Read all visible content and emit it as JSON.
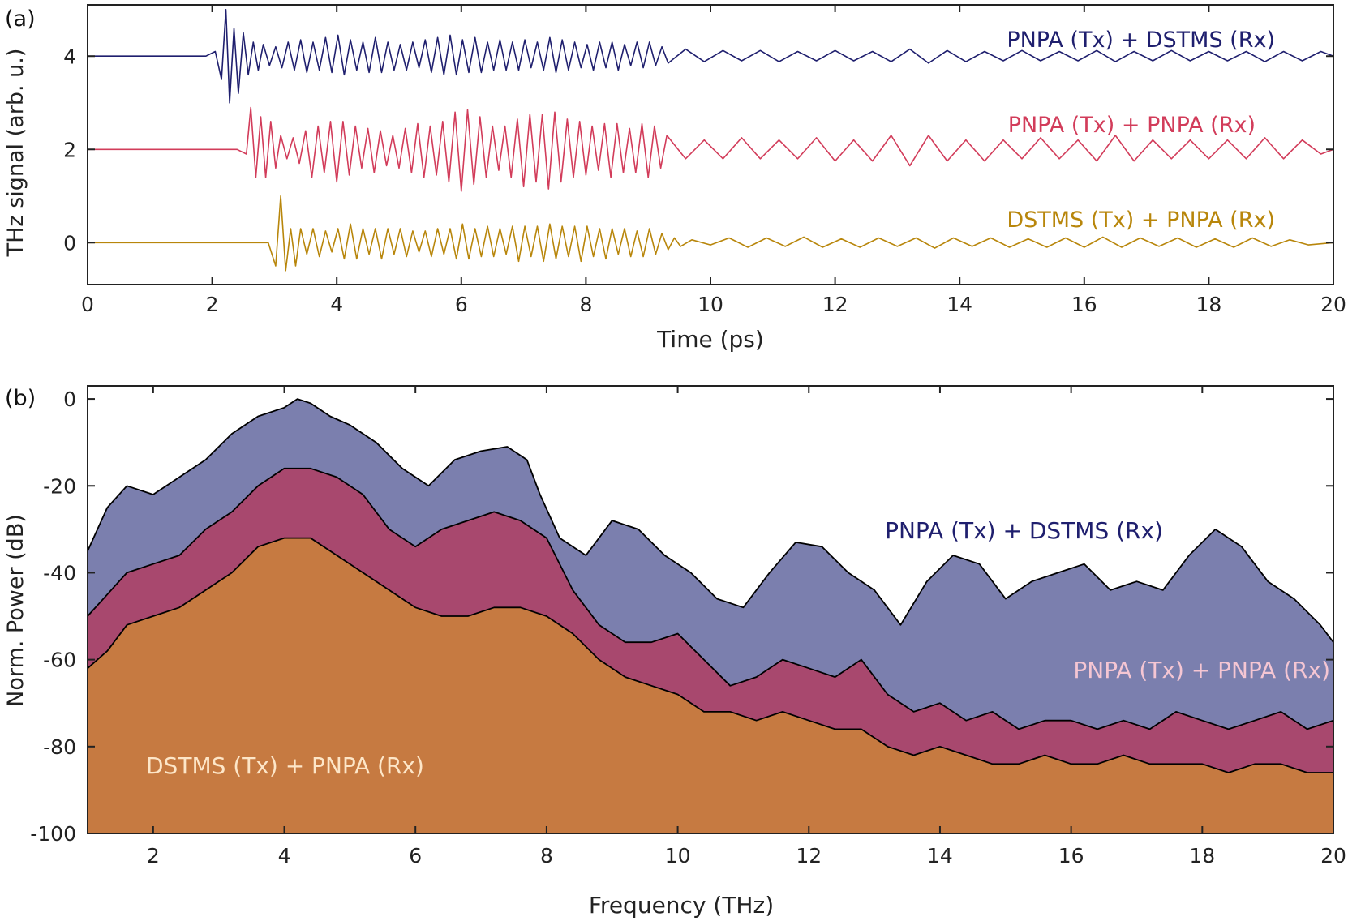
{
  "chart_data": [
    {
      "panel": "(a)",
      "type": "line",
      "xlabel": "Time (ps)",
      "ylabel": "THz signal (arb. u.)",
      "xlim": [
        0,
        20
      ],
      "ylim": [
        -0.9,
        5.1
      ],
      "xticks": [
        0,
        2,
        4,
        6,
        8,
        10,
        12,
        14,
        16,
        18,
        20
      ],
      "yticks": [
        0,
        2,
        4
      ],
      "series": [
        {
          "name": "PNPA (Tx) + DSTMS (Rx)",
          "color": "#1f1f6e",
          "offset": 4,
          "t": [
            0.0,
            1.9,
            2.05,
            2.15,
            2.22,
            2.28,
            2.35,
            2.42,
            2.5,
            2.58,
            2.66,
            2.74,
            2.82,
            2.92,
            3.02,
            3.12,
            3.22,
            3.32,
            3.42,
            3.52,
            3.62,
            3.72,
            3.82,
            3.92,
            4.02,
            4.12,
            4.22,
            4.32,
            4.42,
            4.52,
            4.62,
            4.72,
            4.82,
            4.92,
            5.02,
            5.12,
            5.22,
            5.32,
            5.42,
            5.52,
            5.62,
            5.72,
            5.82,
            5.92,
            6.02,
            6.12,
            6.22,
            6.32,
            6.42,
            6.52,
            6.62,
            6.72,
            6.82,
            6.92,
            7.02,
            7.12,
            7.22,
            7.32,
            7.42,
            7.52,
            7.62,
            7.72,
            7.82,
            7.92,
            8.02,
            8.12,
            8.22,
            8.32,
            8.42,
            8.52,
            8.62,
            8.72,
            8.82,
            8.92,
            9.02,
            9.12,
            9.22,
            9.32,
            9.6,
            9.9,
            10.2,
            10.5,
            10.8,
            11.1,
            11.4,
            11.7,
            12.0,
            12.3,
            12.6,
            12.9,
            13.2,
            13.5,
            13.8,
            14.1,
            14.4,
            14.7,
            15.0,
            15.3,
            15.6,
            15.9,
            16.2,
            16.5,
            16.8,
            17.1,
            17.4,
            17.7,
            18.0,
            18.3,
            18.6,
            18.9,
            19.2,
            19.5,
            19.8,
            20.0
          ],
          "v": [
            0.0,
            0.0,
            0.1,
            -0.5,
            1.0,
            -1.0,
            0.6,
            -0.8,
            0.5,
            -0.4,
            0.3,
            -0.3,
            0.25,
            -0.2,
            0.2,
            -0.25,
            0.3,
            -0.3,
            0.35,
            -0.35,
            0.3,
            -0.3,
            0.4,
            -0.35,
            0.45,
            -0.4,
            0.35,
            -0.3,
            0.3,
            -0.35,
            0.4,
            -0.35,
            0.3,
            -0.3,
            0.25,
            -0.3,
            0.3,
            -0.25,
            0.35,
            -0.35,
            0.4,
            -0.4,
            0.45,
            -0.4,
            0.35,
            -0.35,
            0.4,
            -0.35,
            0.3,
            -0.3,
            0.35,
            -0.3,
            0.3,
            -0.3,
            0.35,
            -0.25,
            0.3,
            -0.3,
            0.4,
            -0.35,
            0.35,
            -0.3,
            0.3,
            -0.25,
            0.25,
            -0.3,
            0.3,
            -0.25,
            0.3,
            -0.3,
            0.25,
            -0.2,
            0.3,
            -0.25,
            0.3,
            -0.2,
            0.2,
            -0.15,
            0.15,
            -0.12,
            0.12,
            -0.1,
            0.12,
            -0.12,
            0.1,
            -0.1,
            0.12,
            -0.1,
            0.1,
            -0.12,
            0.15,
            -0.15,
            0.12,
            -0.12,
            0.1,
            -0.1,
            0.12,
            -0.1,
            0.1,
            -0.1,
            0.12,
            -0.12,
            0.1,
            -0.1,
            0.12,
            -0.1,
            0.1,
            -0.1,
            0.1,
            -0.12,
            0.1,
            -0.1,
            0.1,
            0.0
          ]
        },
        {
          "name": "PNPA (Tx) + PNPA (Rx)",
          "color": "#d23c5a",
          "offset": 2,
          "t": [
            0.0,
            2.4,
            2.55,
            2.62,
            2.7,
            2.78,
            2.86,
            2.94,
            3.02,
            3.1,
            3.2,
            3.3,
            3.4,
            3.5,
            3.6,
            3.7,
            3.8,
            3.9,
            4.0,
            4.1,
            4.2,
            4.3,
            4.4,
            4.5,
            4.6,
            4.7,
            4.8,
            4.9,
            5.0,
            5.1,
            5.2,
            5.3,
            5.4,
            5.5,
            5.6,
            5.7,
            5.8,
            5.9,
            6.0,
            6.1,
            6.2,
            6.3,
            6.4,
            6.5,
            6.6,
            6.7,
            6.8,
            6.9,
            7.0,
            7.1,
            7.2,
            7.3,
            7.4,
            7.5,
            7.6,
            7.7,
            7.8,
            7.9,
            8.0,
            8.1,
            8.2,
            8.3,
            8.4,
            8.5,
            8.6,
            8.7,
            8.8,
            8.9,
            9.0,
            9.1,
            9.2,
            9.3,
            9.6,
            9.9,
            10.2,
            10.5,
            10.8,
            11.1,
            11.4,
            11.7,
            12.0,
            12.3,
            12.6,
            12.9,
            13.2,
            13.5,
            13.8,
            14.1,
            14.4,
            14.7,
            15.0,
            15.3,
            15.6,
            15.9,
            16.2,
            16.5,
            16.8,
            17.1,
            17.4,
            17.7,
            18.0,
            18.3,
            18.6,
            18.9,
            19.2,
            19.5,
            19.8,
            20.0
          ],
          "v": [
            0.0,
            0.0,
            -0.1,
            0.9,
            -0.6,
            0.7,
            -0.6,
            0.6,
            -0.4,
            0.3,
            -0.2,
            0.25,
            -0.3,
            0.4,
            -0.6,
            0.5,
            -0.5,
            0.6,
            -0.7,
            0.6,
            -0.55,
            0.5,
            -0.4,
            0.45,
            -0.5,
            0.4,
            -0.35,
            0.3,
            -0.4,
            0.45,
            -0.5,
            0.55,
            -0.6,
            0.5,
            -0.55,
            0.6,
            -0.7,
            0.8,
            -0.9,
            0.85,
            -0.75,
            0.7,
            -0.6,
            0.5,
            -0.45,
            0.5,
            -0.6,
            0.65,
            -0.8,
            0.75,
            -0.7,
            0.75,
            -0.85,
            0.8,
            -0.7,
            0.65,
            -0.6,
            0.6,
            -0.55,
            0.5,
            -0.45,
            0.55,
            -0.6,
            0.55,
            -0.5,
            0.45,
            -0.5,
            0.55,
            -0.6,
            0.5,
            -0.4,
            0.3,
            -0.2,
            0.2,
            -0.2,
            0.25,
            -0.2,
            0.2,
            -0.2,
            0.25,
            -0.25,
            0.2,
            -0.25,
            0.3,
            -0.35,
            0.3,
            -0.25,
            0.2,
            -0.25,
            0.2,
            -0.2,
            0.25,
            -0.2,
            0.2,
            -0.25,
            0.3,
            -0.25,
            0.2,
            -0.2,
            0.2,
            -0.2,
            0.2,
            -0.2,
            0.25,
            -0.2,
            0.2,
            -0.1,
            0.0
          ]
        },
        {
          "name": "DSTMS (Tx) + PNPA (Rx)",
          "color": "#b8860b",
          "offset": 0,
          "t": [
            0.0,
            2.9,
            3.02,
            3.1,
            3.18,
            3.26,
            3.34,
            3.42,
            3.52,
            3.62,
            3.72,
            3.82,
            3.92,
            4.02,
            4.12,
            4.22,
            4.32,
            4.42,
            4.52,
            4.62,
            4.72,
            4.82,
            4.92,
            5.02,
            5.12,
            5.22,
            5.32,
            5.42,
            5.52,
            5.62,
            5.72,
            5.82,
            5.92,
            6.02,
            6.12,
            6.22,
            6.32,
            6.42,
            6.52,
            6.62,
            6.72,
            6.82,
            6.92,
            7.02,
            7.12,
            7.22,
            7.32,
            7.42,
            7.52,
            7.62,
            7.72,
            7.82,
            7.92,
            8.02,
            8.12,
            8.22,
            8.32,
            8.42,
            8.52,
            8.62,
            8.72,
            8.82,
            8.92,
            9.02,
            9.12,
            9.22,
            9.32,
            9.42,
            9.52,
            9.7,
            10.0,
            10.3,
            10.6,
            10.9,
            11.2,
            11.5,
            11.8,
            12.1,
            12.4,
            12.7,
            13.0,
            13.3,
            13.6,
            13.9,
            14.2,
            14.5,
            14.8,
            15.1,
            15.4,
            15.7,
            16.0,
            16.3,
            16.6,
            16.9,
            17.2,
            17.5,
            17.8,
            18.1,
            18.4,
            18.7,
            19.0,
            19.3,
            19.6,
            20.0
          ],
          "v": [
            0.0,
            0.0,
            -0.5,
            1.0,
            -0.6,
            0.3,
            -0.5,
            0.3,
            -0.25,
            0.3,
            -0.3,
            0.25,
            -0.2,
            0.3,
            -0.35,
            0.4,
            -0.35,
            0.3,
            -0.25,
            0.3,
            -0.35,
            0.3,
            -0.25,
            0.3,
            -0.3,
            0.25,
            -0.2,
            0.25,
            -0.3,
            0.3,
            -0.25,
            0.3,
            -0.35,
            0.4,
            -0.35,
            0.3,
            -0.3,
            0.35,
            -0.3,
            0.3,
            -0.25,
            0.35,
            -0.4,
            0.35,
            -0.3,
            0.35,
            -0.4,
            0.4,
            -0.35,
            0.35,
            -0.3,
            0.35,
            -0.4,
            0.35,
            -0.3,
            0.3,
            -0.35,
            0.3,
            -0.25,
            0.3,
            -0.3,
            0.25,
            -0.3,
            0.3,
            -0.25,
            0.2,
            -0.15,
            0.1,
            -0.08,
            0.06,
            -0.05,
            0.1,
            -0.1,
            0.1,
            -0.08,
            0.12,
            -0.1,
            0.08,
            -0.1,
            0.1,
            -0.08,
            0.1,
            -0.12,
            0.1,
            -0.08,
            0.1,
            -0.1,
            0.08,
            -0.1,
            0.1,
            -0.1,
            0.12,
            -0.1,
            0.1,
            -0.08,
            0.1,
            -0.1,
            0.08,
            -0.1,
            0.1,
            -0.08,
            0.06,
            -0.05,
            0.0
          ]
        }
      ]
    },
    {
      "panel": "(b)",
      "type": "area",
      "xlabel": "Frequency (THz)",
      "ylabel": "Norm. Power (dB)",
      "xlim": [
        1,
        20
      ],
      "ylim": [
        -100,
        3
      ],
      "xticks": [
        2,
        4,
        6,
        8,
        10,
        12,
        14,
        16,
        18,
        20
      ],
      "yticks": [
        0,
        -20,
        -40,
        -60,
        -80,
        -100
      ],
      "series": [
        {
          "name": "PNPA (Tx) + DSTMS (Rx)",
          "fill": "#7b7fae",
          "label_color": "#1f1f6e",
          "f": [
            1.0,
            1.3,
            1.6,
            2.0,
            2.4,
            2.8,
            3.2,
            3.6,
            4.0,
            4.2,
            4.4,
            4.7,
            5.0,
            5.4,
            5.8,
            6.2,
            6.6,
            7.0,
            7.4,
            7.7,
            7.9,
            8.2,
            8.6,
            9.0,
            9.4,
            9.8,
            10.2,
            10.6,
            11.0,
            11.4,
            11.8,
            12.2,
            12.6,
            13.0,
            13.4,
            13.8,
            14.2,
            14.6,
            15.0,
            15.4,
            15.8,
            16.2,
            16.6,
            17.0,
            17.4,
            17.8,
            18.2,
            18.6,
            19.0,
            19.4,
            19.8,
            20.0
          ],
          "db": [
            -35,
            -25,
            -20,
            -22,
            -18,
            -14,
            -8,
            -4,
            -2,
            0,
            -1,
            -4,
            -6,
            -10,
            -16,
            -20,
            -14,
            -12,
            -11,
            -14,
            -22,
            -32,
            -36,
            -28,
            -30,
            -36,
            -40,
            -46,
            -48,
            -40,
            -33,
            -34,
            -40,
            -44,
            -52,
            -42,
            -36,
            -38,
            -46,
            -42,
            -40,
            -38,
            -44,
            -42,
            -44,
            -36,
            -30,
            -34,
            -42,
            -46,
            -52,
            -56
          ]
        },
        {
          "name": "PNPA (Tx) + PNPA (Rx)",
          "fill": "#a8486e",
          "label_color": "#f5c6d3",
          "f": [
            1.0,
            1.3,
            1.6,
            2.0,
            2.4,
            2.8,
            3.2,
            3.6,
            4.0,
            4.4,
            4.8,
            5.2,
            5.6,
            6.0,
            6.4,
            6.8,
            7.2,
            7.6,
            8.0,
            8.4,
            8.8,
            9.2,
            9.6,
            10.0,
            10.4,
            10.8,
            11.2,
            11.6,
            12.0,
            12.4,
            12.8,
            13.2,
            13.6,
            14.0,
            14.4,
            14.8,
            15.2,
            15.6,
            16.0,
            16.4,
            16.8,
            17.2,
            17.6,
            18.0,
            18.4,
            18.8,
            19.2,
            19.6,
            20.0
          ],
          "db": [
            -50,
            -45,
            -40,
            -38,
            -36,
            -30,
            -26,
            -20,
            -16,
            -16,
            -18,
            -22,
            -30,
            -34,
            -30,
            -28,
            -26,
            -28,
            -32,
            -44,
            -52,
            -56,
            -56,
            -54,
            -60,
            -66,
            -64,
            -60,
            -62,
            -64,
            -60,
            -68,
            -72,
            -70,
            -74,
            -72,
            -76,
            -74,
            -74,
            -76,
            -74,
            -76,
            -72,
            -74,
            -76,
            -74,
            -72,
            -76,
            -74
          ]
        },
        {
          "name": "DSTMS (Tx) + PNPA (Rx)",
          "fill": "#c67a41",
          "label_color": "#fde6c8",
          "f": [
            1.0,
            1.3,
            1.6,
            2.0,
            2.4,
            2.8,
            3.2,
            3.6,
            4.0,
            4.4,
            4.8,
            5.2,
            5.6,
            6.0,
            6.4,
            6.8,
            7.2,
            7.6,
            8.0,
            8.4,
            8.8,
            9.2,
            9.6,
            10.0,
            10.4,
            10.8,
            11.2,
            11.6,
            12.0,
            12.4,
            12.8,
            13.2,
            13.6,
            14.0,
            14.4,
            14.8,
            15.2,
            15.6,
            16.0,
            16.4,
            16.8,
            17.2,
            17.6,
            18.0,
            18.4,
            18.8,
            19.2,
            19.6,
            20.0
          ],
          "db": [
            -62,
            -58,
            -52,
            -50,
            -48,
            -44,
            -40,
            -34,
            -32,
            -32,
            -36,
            -40,
            -44,
            -48,
            -50,
            -50,
            -48,
            -48,
            -50,
            -54,
            -60,
            -64,
            -66,
            -68,
            -72,
            -72,
            -74,
            -72,
            -74,
            -76,
            -76,
            -80,
            -82,
            -80,
            -82,
            -84,
            -84,
            -82,
            -84,
            -84,
            -82,
            -84,
            -84,
            -84,
            -86,
            -84,
            -84,
            -86,
            -86
          ]
        }
      ]
    }
  ]
}
